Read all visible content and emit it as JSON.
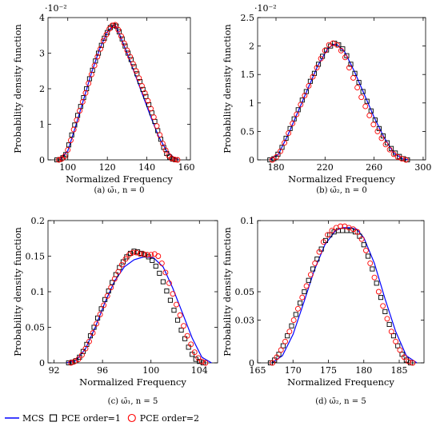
{
  "legend": {
    "items": [
      {
        "label": "MCS",
        "marker": "line",
        "color": "#0000ff"
      },
      {
        "label": "PCE order=1",
        "marker": "square",
        "color": "#000000"
      },
      {
        "label": "PCE order=2",
        "marker": "circle",
        "color": "#ff0000"
      }
    ]
  },
  "chart_data": [
    {
      "type": "line",
      "caption": "(a) ω̄₁,  n = 0",
      "xlabel": "Normalized Frequency",
      "ylabel": "Probability density function",
      "scale_label": "·10⁻²",
      "xlim": [
        90,
        162
      ],
      "ylim": [
        0,
        4
      ],
      "xticks": [
        100,
        120,
        140,
        160
      ],
      "yticks": [
        0,
        1,
        2,
        3,
        4
      ],
      "ytick_labels": [
        "0",
        "1",
        "2",
        "3",
        "4"
      ],
      "series": [
        {
          "name": "MCS",
          "marker": "line",
          "color": "#0000ff",
          "x": [
            96,
            100,
            104,
            108,
            112,
            116,
            120,
            123,
            124,
            126,
            130,
            134,
            138,
            142,
            146,
            150,
            154,
            156
          ],
          "y": [
            0.0,
            0.25,
            0.95,
            1.7,
            2.45,
            3.1,
            3.6,
            3.78,
            3.78,
            3.55,
            3.0,
            2.4,
            1.8,
            1.2,
            0.65,
            0.25,
            0.05,
            0.0
          ]
        },
        {
          "name": "PCE order=1",
          "marker": "square",
          "color": "#000000",
          "x": [
            94.5,
            96,
            97.5,
            99,
            100.5,
            102,
            103.5,
            105,
            106.5,
            108,
            109.5,
            111,
            112.5,
            114,
            115.5,
            117,
            118.5,
            120,
            121.5,
            123,
            124.5,
            126,
            127.5,
            129,
            130.5,
            132,
            133.5,
            135,
            136.5,
            138,
            139.5,
            141,
            142.5,
            144,
            145.5,
            147,
            148.5,
            150,
            151.5,
            153,
            154.5
          ],
          "y": [
            0.0,
            0.01,
            0.06,
            0.15,
            0.42,
            0.7,
            0.98,
            1.25,
            1.5,
            1.75,
            2.0,
            2.28,
            2.52,
            2.78,
            3.0,
            3.22,
            3.42,
            3.58,
            3.72,
            3.78,
            3.76,
            3.6,
            3.4,
            3.2,
            3.0,
            2.82,
            2.62,
            2.42,
            2.2,
            1.98,
            1.78,
            1.55,
            1.32,
            1.08,
            0.82,
            0.58,
            0.35,
            0.18,
            0.08,
            0.02,
            0.0
          ]
        },
        {
          "name": "PCE order=2",
          "marker": "circle",
          "color": "#ff0000",
          "x": [
            95.5,
            97,
            98.5,
            100,
            101.5,
            103,
            104.5,
            106,
            107.5,
            109,
            110.5,
            112,
            113.5,
            115,
            116.5,
            118,
            119.5,
            121,
            122.5,
            124,
            125.5,
            127,
            128.5,
            130,
            131.5,
            133,
            134.5,
            136,
            137.5,
            139,
            140.5,
            142,
            143.5,
            145,
            146.5,
            148,
            149.5,
            151,
            152.5,
            154,
            155.5
          ],
          "y": [
            0.0,
            0.03,
            0.1,
            0.28,
            0.55,
            0.85,
            1.12,
            1.38,
            1.63,
            1.88,
            2.15,
            2.4,
            2.65,
            2.9,
            3.12,
            3.35,
            3.52,
            3.68,
            3.78,
            3.8,
            3.66,
            3.48,
            3.28,
            3.08,
            2.9,
            2.7,
            2.5,
            2.3,
            2.08,
            1.88,
            1.66,
            1.44,
            1.2,
            0.95,
            0.7,
            0.46,
            0.27,
            0.12,
            0.04,
            0.01,
            0.0
          ]
        }
      ]
    },
    {
      "type": "line",
      "caption": "(b) ω̄₂,  n = 0",
      "xlabel": "Normalized Frequency",
      "ylabel": "Probability density function",
      "scale_label": "·10⁻²",
      "xlim": [
        165,
        302
      ],
      "ylim": [
        0,
        2.5
      ],
      "xticks": [
        180,
        220,
        260,
        300
      ],
      "yticks": [
        0,
        0.5,
        1,
        1.5,
        2,
        2.5
      ],
      "ytick_labels": [
        "0",
        "0.5",
        "1",
        "1.5",
        "2",
        "2.5"
      ],
      "series": [
        {
          "name": "MCS",
          "marker": "line",
          "color": "#0000ff",
          "x": [
            175,
            182,
            190,
            198,
            206,
            214,
            222,
            227,
            230,
            236,
            244,
            252,
            260,
            268,
            276,
            283,
            288
          ],
          "y": [
            0.0,
            0.1,
            0.45,
            0.85,
            1.25,
            1.65,
            1.95,
            2.03,
            2.02,
            1.9,
            1.55,
            1.15,
            0.75,
            0.4,
            0.12,
            0.02,
            0.0
          ]
        },
        {
          "name": "PCE order=1",
          "marker": "square",
          "color": "#000000",
          "x": [
            175,
            178.3,
            181.6,
            184.9,
            188.2,
            191.5,
            194.8,
            198.1,
            201.4,
            204.7,
            208,
            211.3,
            214.6,
            217.9,
            221.2,
            224.5,
            227.8,
            231.1,
            234.4,
            237.7,
            241,
            244.3,
            247.6,
            250.9,
            254.2,
            257.5,
            260.8,
            264.1,
            267.4,
            270.7,
            274,
            277.3,
            280.6,
            283.9,
            287.2
          ],
          "y": [
            0.0,
            0.02,
            0.1,
            0.22,
            0.38,
            0.55,
            0.72,
            0.88,
            1.05,
            1.2,
            1.38,
            1.52,
            1.68,
            1.82,
            1.93,
            2.0,
            2.05,
            2.02,
            1.95,
            1.83,
            1.68,
            1.52,
            1.36,
            1.2,
            1.03,
            0.86,
            0.7,
            0.55,
            0.42,
            0.3,
            0.2,
            0.12,
            0.06,
            0.02,
            0.0
          ]
        },
        {
          "name": "PCE order=2",
          "marker": "circle",
          "color": "#ff0000",
          "x": [
            177,
            180.3,
            183.6,
            186.9,
            190.2,
            193.5,
            196.8,
            200.1,
            203.4,
            206.7,
            210,
            213.3,
            216.6,
            219.9,
            223.2,
            226.5,
            229.8,
            233.1,
            236.4,
            239.7,
            243,
            246.3,
            249.6,
            252.9,
            256.2,
            259.5,
            262.8,
            266.1,
            269.4,
            272.7,
            276,
            279.3,
            282.6,
            285.9
          ],
          "y": [
            0.0,
            0.05,
            0.15,
            0.3,
            0.47,
            0.64,
            0.8,
            0.97,
            1.13,
            1.3,
            1.46,
            1.62,
            1.78,
            1.92,
            2.02,
            2.05,
            2.02,
            1.92,
            1.8,
            1.62,
            1.44,
            1.27,
            1.1,
            0.94,
            0.78,
            0.62,
            0.5,
            0.38,
            0.27,
            0.18,
            0.1,
            0.05,
            0.02,
            0.0
          ]
        }
      ]
    },
    {
      "type": "line",
      "caption": "(c) ω̄₁,  n = 5",
      "xlabel": "Normalized Frequency",
      "ylabel": "Probability density function",
      "scale_label": "",
      "xlim": [
        91.5,
        105.5
      ],
      "ylim": [
        0,
        0.2
      ],
      "xticks": [
        92,
        96,
        100,
        104
      ],
      "yticks": [
        0,
        0.05,
        0.1,
        0.15,
        0.2
      ],
      "ytick_labels": [
        "0",
        "0.05",
        "0.1",
        "0.15",
        "0.2"
      ],
      "series": [
        {
          "name": "MCS",
          "marker": "line",
          "color": "#0000ff",
          "x": [
            93,
            93.8,
            94.6,
            95.4,
            96.2,
            97,
            97.8,
            98.6,
            99.4,
            100.2,
            101,
            101.8,
            102.6,
            103.4,
            104.2,
            105
          ],
          "y": [
            0.0,
            0.003,
            0.02,
            0.05,
            0.085,
            0.115,
            0.135,
            0.145,
            0.149,
            0.148,
            0.135,
            0.105,
            0.07,
            0.035,
            0.008,
            0.0
          ]
        },
        {
          "name": "PCE order=1",
          "marker": "square",
          "color": "#000000",
          "x": [
            93.2,
            93.5,
            93.8,
            94.1,
            94.4,
            94.7,
            95,
            95.3,
            95.6,
            95.9,
            96.2,
            96.5,
            96.8,
            97.1,
            97.4,
            97.7,
            98,
            98.3,
            98.6,
            98.9,
            99.2,
            99.5,
            99.8,
            100.1,
            100.4,
            100.7,
            101,
            101.3,
            101.6,
            101.9,
            102.2,
            102.5,
            102.8,
            103.1,
            103.4,
            103.7,
            104,
            104.3
          ],
          "y": [
            0.0,
            0.001,
            0.003,
            0.008,
            0.016,
            0.026,
            0.038,
            0.05,
            0.063,
            0.076,
            0.089,
            0.101,
            0.113,
            0.124,
            0.134,
            0.142,
            0.149,
            0.154,
            0.157,
            0.156,
            0.154,
            0.152,
            0.149,
            0.144,
            0.136,
            0.126,
            0.114,
            0.101,
            0.088,
            0.074,
            0.06,
            0.046,
            0.034,
            0.022,
            0.012,
            0.005,
            0.002,
            0.0
          ]
        },
        {
          "name": "PCE order=2",
          "marker": "circle",
          "color": "#ff0000",
          "x": [
            93.4,
            93.7,
            94,
            94.3,
            94.6,
            94.9,
            95.2,
            95.5,
            95.8,
            96.1,
            96.4,
            96.7,
            97,
            97.3,
            97.6,
            97.9,
            98.2,
            98.5,
            98.8,
            99.1,
            99.4,
            99.7,
            100,
            100.3,
            100.6,
            100.9,
            101.2,
            101.5,
            101.8,
            102.1,
            102.4,
            102.7,
            103,
            103.3,
            103.6,
            103.9,
            104.2,
            104.5
          ],
          "y": [
            0.0,
            0.002,
            0.005,
            0.011,
            0.02,
            0.03,
            0.042,
            0.055,
            0.068,
            0.081,
            0.094,
            0.106,
            0.118,
            0.128,
            0.138,
            0.146,
            0.152,
            0.155,
            0.155,
            0.153,
            0.153,
            0.152,
            0.152,
            0.153,
            0.15,
            0.14,
            0.127,
            0.112,
            0.097,
            0.082,
            0.067,
            0.052,
            0.038,
            0.026,
            0.015,
            0.007,
            0.002,
            0.0
          ]
        }
      ]
    },
    {
      "type": "line",
      "caption": "(d) ω̄₂,  n = 5",
      "xlabel": "Normalized Frequency",
      "ylabel": "Probability density function",
      "scale_label": "",
      "xlim": [
        165,
        188.5
      ],
      "ylim": [
        0,
        0.1
      ],
      "xticks": [
        165,
        170,
        175,
        180,
        185
      ],
      "yticks": [
        0,
        0.03,
        0.05,
        0.1
      ],
      "ytick_labels": [
        "0",
        "0.03",
        "0.05",
        "0.1"
      ],
      "series": [
        {
          "name": "MCS",
          "marker": "line",
          "color": "#0000ff",
          "x": [
            167,
            168.5,
            170,
            171.5,
            173,
            174.5,
            176,
            177,
            178,
            179,
            180,
            181.5,
            183,
            184.5,
            186,
            187.5
          ],
          "y": [
            0.0,
            0.005,
            0.02,
            0.042,
            0.065,
            0.083,
            0.093,
            0.095,
            0.095,
            0.094,
            0.088,
            0.07,
            0.045,
            0.022,
            0.005,
            0.0
          ]
        },
        {
          "name": "PCE order=1",
          "marker": "square",
          "color": "#000000",
          "x": [
            166.8,
            167.4,
            168,
            168.6,
            169.2,
            169.8,
            170.4,
            171,
            171.6,
            172.2,
            172.8,
            173.4,
            174,
            174.6,
            175.2,
            175.8,
            176.4,
            177,
            177.6,
            178.2,
            178.8,
            179.4,
            180,
            180.6,
            181.2,
            181.8,
            182.4,
            183,
            183.6,
            184.2,
            184.8,
            185.4,
            186,
            186.6
          ],
          "y": [
            0.0,
            0.002,
            0.006,
            0.012,
            0.019,
            0.026,
            0.034,
            0.042,
            0.05,
            0.058,
            0.066,
            0.073,
            0.08,
            0.086,
            0.09,
            0.092,
            0.093,
            0.093,
            0.093,
            0.093,
            0.092,
            0.089,
            0.083,
            0.075,
            0.066,
            0.056,
            0.046,
            0.036,
            0.027,
            0.019,
            0.012,
            0.006,
            0.002,
            0.0
          ]
        },
        {
          "name": "PCE order=2",
          "marker": "circle",
          "color": "#ff0000",
          "x": [
            167.1,
            167.7,
            168.3,
            168.9,
            169.5,
            170.1,
            170.7,
            171.3,
            171.9,
            172.5,
            173.1,
            173.7,
            174.3,
            174.9,
            175.5,
            176.1,
            176.7,
            177.3,
            177.9,
            178.5,
            179.1,
            179.7,
            180.3,
            180.9,
            181.5,
            182.1,
            182.7,
            183.3,
            183.9,
            184.5,
            185.1,
            185.7,
            186.3,
            186.9
          ],
          "y": [
            0.0,
            0.004,
            0.009,
            0.015,
            0.022,
            0.03,
            0.038,
            0.046,
            0.054,
            0.062,
            0.07,
            0.078,
            0.085,
            0.09,
            0.093,
            0.095,
            0.096,
            0.096,
            0.095,
            0.094,
            0.092,
            0.087,
            0.079,
            0.07,
            0.06,
            0.05,
            0.04,
            0.031,
            0.022,
            0.015,
            0.009,
            0.004,
            0.001,
            0.0
          ]
        }
      ]
    }
  ]
}
